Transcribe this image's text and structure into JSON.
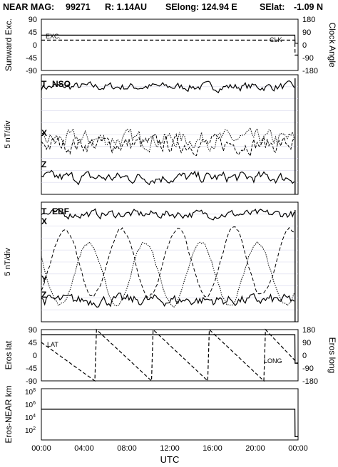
{
  "header": {
    "mission": "NEAR MAG:",
    "day": "99271",
    "range": "R: 1.14AU",
    "selong": "SElong: 124.94 E",
    "selat": "SElat:",
    "selat_value": "-1.09 N"
  },
  "chart_data": [
    {
      "type": "line",
      "panel": "sunward",
      "ylabel_left": "Sunward Exc.",
      "ylabel_right": "Clock Angle",
      "yticks_left": [
        "90",
        "45",
        "0",
        "-45",
        "-90"
      ],
      "yticks_right": [
        "180",
        "90",
        "0",
        "-90",
        "-180"
      ],
      "ylim": [
        -90,
        90
      ],
      "annotations": [
        "EXC.",
        "CLK"
      ],
      "series": [
        {
          "name": "EXC.",
          "x": [
            0.0,
            23.7,
            23.72,
            24.0
          ],
          "y": [
            34,
            34,
            6,
            6
          ]
        },
        {
          "name": "CLK",
          "x": [
            0.0,
            23.7,
            23.72,
            24.0
          ],
          "y": [
            33,
            33,
            -72,
            -72
          ]
        }
      ]
    },
    {
      "type": "line",
      "panel": "nso",
      "ylabel": "5 nT/div",
      "annotations": [
        "T",
        "NSO",
        "X",
        "Z"
      ],
      "series": [
        {
          "name": "T",
          "level": 9,
          "noise": 0.3
        },
        {
          "name": "X",
          "level": 4.2,
          "noise": 0.6
        },
        {
          "name": "Z",
          "level": 1.4,
          "noise": 0.4
        }
      ]
    },
    {
      "type": "line",
      "panel": "ebf",
      "ylabel": "5 nT/div",
      "annotations": [
        "T",
        "EBF",
        "X",
        "Y",
        "Z"
      ],
      "series": [
        {
          "name": "T",
          "level": 9,
          "noise": 0.3
        },
        {
          "name": "X",
          "level": 5,
          "amplitude": 2.8,
          "period_h": 5.27
        },
        {
          "name": "Y",
          "level": 4,
          "amplitude": 2.6,
          "period_h": 5.27
        },
        {
          "name": "Z",
          "level": 1.8,
          "noise": 0.4
        }
      ]
    },
    {
      "type": "line",
      "panel": "eros",
      "ylabel_left": "Eros lat",
      "ylabel_right": "Eros long",
      "yticks_left": [
        "90",
        "45",
        "0",
        "-45",
        "-90"
      ],
      "yticks_right": [
        "180",
        "90",
        "0",
        "-90",
        "-180"
      ],
      "ylim": [
        -90,
        90
      ],
      "annotations": [
        "LAT",
        "LONG"
      ],
      "series": [
        {
          "name": "LAT",
          "x": [
            0.0,
            23.7,
            23.72,
            24.0
          ],
          "y": [
            72,
            72,
            -28,
            -28
          ]
        },
        {
          "name": "LONG",
          "x": [
            0.0,
            5.0,
            5.15,
            10.3,
            10.45,
            15.55,
            15.7,
            20.8,
            20.95,
            24.0
          ],
          "y": [
            90,
            -180,
            180,
            -180,
            180,
            -180,
            180,
            -180,
            180,
            -60
          ]
        }
      ]
    },
    {
      "type": "line",
      "panel": "distance",
      "ylabel": "Eros-NEAR km",
      "yscale": "log",
      "yticks": [
        "10^8",
        "10^6",
        "10^4",
        "10^2"
      ],
      "ylim": [
        10,
        100000000
      ],
      "series": [
        {
          "name": "distance",
          "x": [
            0.0,
            23.7,
            23.72,
            24.0
          ],
          "y": [
            300000,
            300000,
            20,
            20
          ]
        }
      ]
    }
  ],
  "xaxis": {
    "label": "UTC",
    "ticks": [
      "00:00",
      "04:00",
      "08:00",
      "12:00",
      "16:00",
      "20:00",
      "00:00"
    ],
    "xlim": [
      0,
      24
    ]
  }
}
